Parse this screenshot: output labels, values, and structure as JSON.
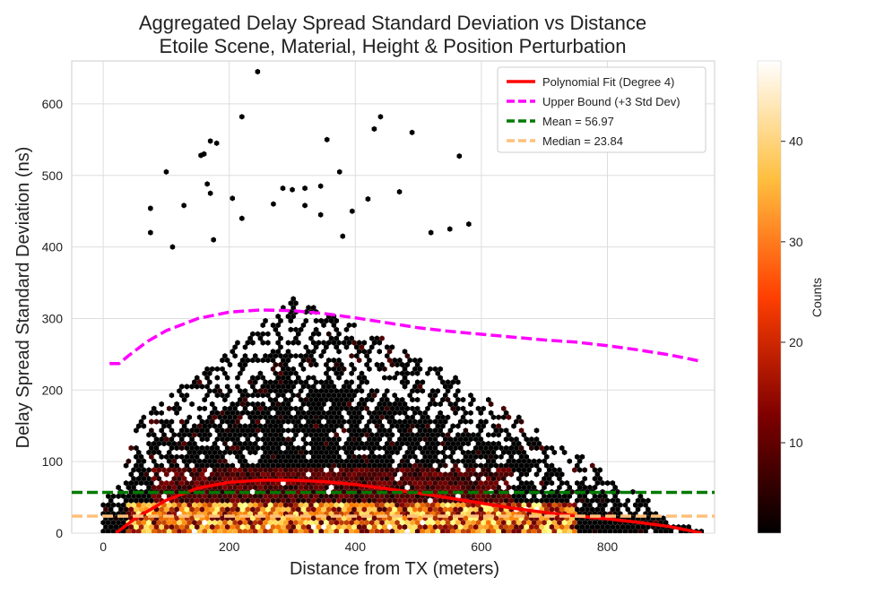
{
  "chart_data": {
    "type": "scatter",
    "title_lines": [
      "Aggregated Delay Spread Standard Deviation vs Distance",
      "Etoile Scene, Material, Height & Position Perturbation"
    ],
    "xlabel": "Distance from TX (meters)",
    "ylabel": "Delay Spread Standard Deviation (ns)",
    "xlim": [
      -50,
      970
    ],
    "ylim": [
      0,
      660
    ],
    "x_ticks": [
      0,
      200,
      400,
      600,
      800
    ],
    "y_ticks": [
      0,
      100,
      200,
      300,
      400,
      500,
      600
    ],
    "grid": true,
    "legend_position": "top-right",
    "colorbar": {
      "label": "Counts",
      "range": [
        1,
        48
      ],
      "ticks": [
        10,
        20,
        30,
        40
      ],
      "colormap": "afmhot"
    },
    "series": [
      {
        "name": "Polynomial Fit (Degree 4)",
        "kind": "line",
        "color": "#ff0000",
        "style": "solid",
        "x": [
          20,
          50,
          100,
          150,
          200,
          250,
          300,
          350,
          400,
          450,
          500,
          550,
          600,
          650,
          700,
          750,
          800,
          850,
          900,
          950
        ],
        "y": [
          0,
          20,
          46,
          63,
          71,
          74,
          74,
          72,
          68,
          62,
          56,
          49,
          42,
          35,
          29,
          24,
          20,
          15,
          9,
          0
        ]
      },
      {
        "name": "Upper Bound (+3 Std Dev)",
        "kind": "line",
        "color": "#ff00ff",
        "style": "dashed",
        "x": [
          10,
          25,
          40,
          70,
          100,
          150,
          200,
          250,
          300,
          350,
          400,
          450,
          500,
          550,
          600,
          650,
          700,
          750,
          800,
          850,
          900,
          950
        ],
        "y": [
          237,
          237,
          248,
          268,
          283,
          300,
          309,
          312,
          311,
          307,
          301,
          294,
          287,
          282,
          278,
          274,
          270,
          267,
          262,
          256,
          249,
          240
        ]
      },
      {
        "name": "Mean = 56.97",
        "kind": "hline",
        "color": "#007a00",
        "style": "dashed",
        "y": 56.97
      },
      {
        "name": "Median = 23.84",
        "kind": "hline",
        "color": "#ffc07a",
        "style": "dashed",
        "y": 23.84
      }
    ],
    "hexbin_density": {
      "description": "hexbin counts of points; dense core near x 100-700, y 0-200",
      "sparse_points": [
        [
          245,
          645
        ],
        [
          220,
          582
        ],
        [
          440,
          582
        ],
        [
          430,
          565
        ],
        [
          490,
          560
        ],
        [
          355,
          550
        ],
        [
          170,
          548
        ],
        [
          180,
          545
        ],
        [
          155,
          528
        ],
        [
          160,
          530
        ],
        [
          565,
          527
        ],
        [
          100,
          505
        ],
        [
          375,
          505
        ],
        [
          165,
          488
        ],
        [
          285,
          482
        ],
        [
          300,
          480
        ],
        [
          320,
          482
        ],
        [
          345,
          485
        ],
        [
          170,
          475
        ],
        [
          420,
          467
        ],
        [
          470,
          477
        ],
        [
          205,
          468
        ],
        [
          128,
          458
        ],
        [
          320,
          458
        ],
        [
          270,
          460
        ],
        [
          75,
          454
        ],
        [
          395,
          450
        ],
        [
          345,
          445
        ],
        [
          220,
          440
        ],
        [
          580,
          432
        ],
        [
          75,
          420
        ],
        [
          175,
          410
        ],
        [
          520,
          420
        ],
        [
          380,
          415
        ],
        [
          550,
          425
        ],
        [
          110,
          400
        ]
      ]
    }
  }
}
